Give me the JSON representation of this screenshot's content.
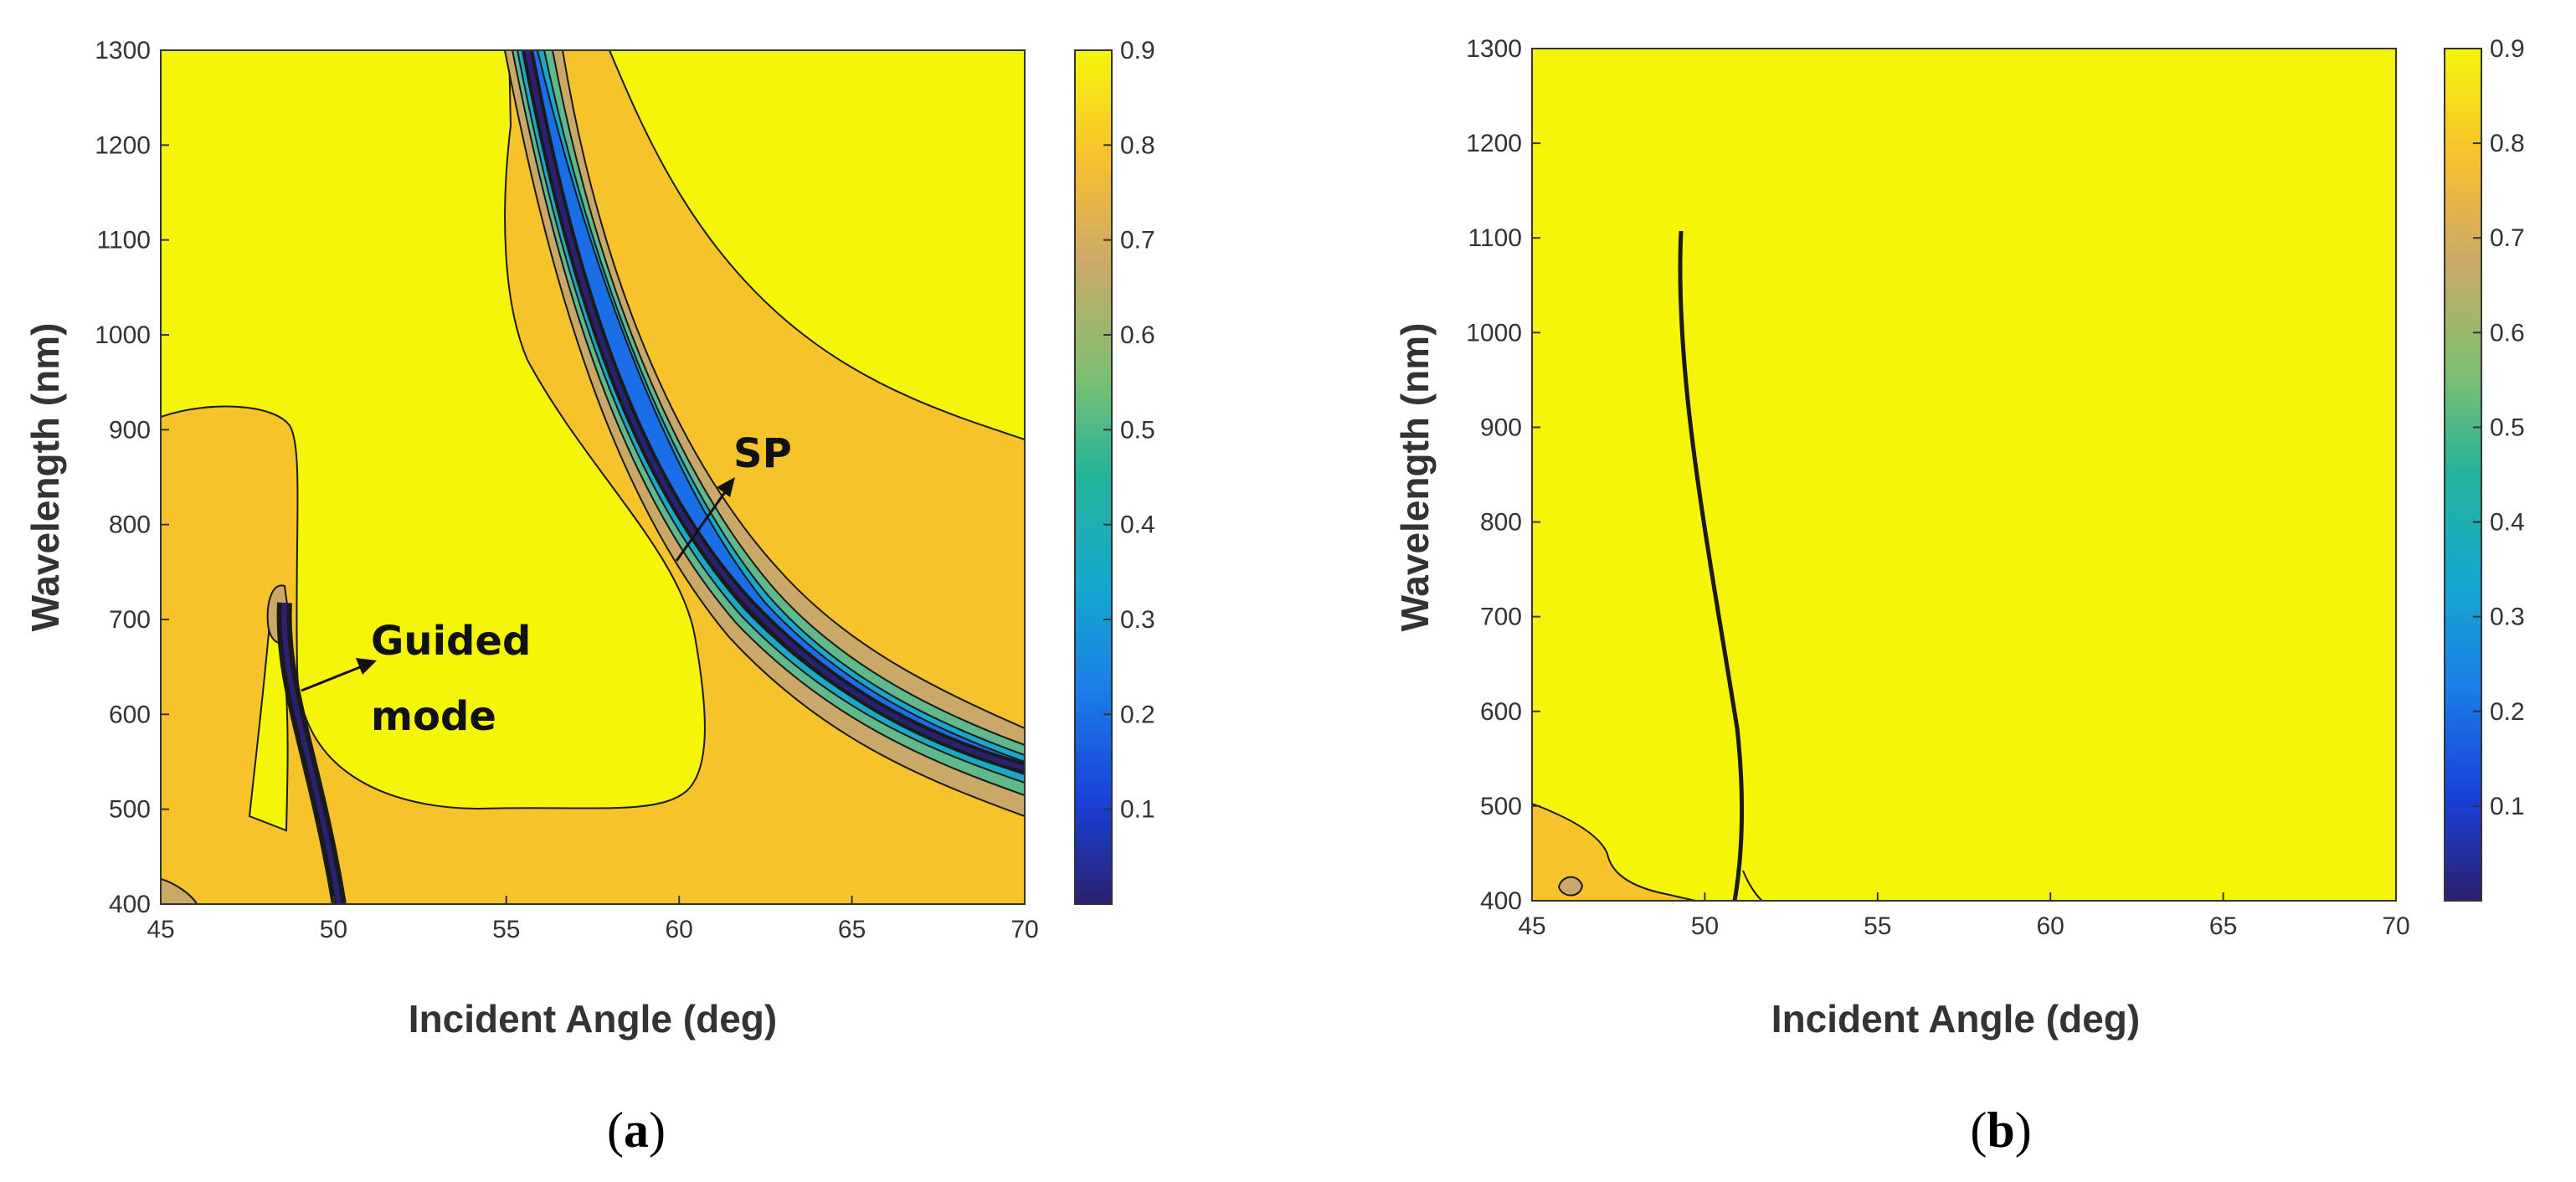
{
  "chart_data": [
    {
      "type": "heatmap",
      "panel_label": "a",
      "xlabel": "Incident Angle (deg)",
      "ylabel": "Wavelength (nm)",
      "xlim": [
        45,
        70
      ],
      "ylim": [
        400,
        1300
      ],
      "xticks": [
        "45",
        "50",
        "55",
        "60",
        "65",
        "70"
      ],
      "yticks": [
        "400",
        "500",
        "600",
        "700",
        "800",
        "900",
        "1000",
        "1100",
        "1200",
        "1300"
      ],
      "colorbar": {
        "range": [
          0,
          0.9
        ],
        "ticks": [
          "0.1",
          "0.2",
          "0.3",
          "0.4",
          "0.5",
          "0.6",
          "0.7",
          "0.8",
          "0.9"
        ]
      },
      "annotations": [
        {
          "lines": [
            "Guided",
            "mode"
          ],
          "points_to": {
            "x": 48.8,
            "y": 600
          }
        },
        {
          "lines": [
            "SP"
          ],
          "points_to": {
            "x": 59.2,
            "y": 780
          }
        }
      ],
      "features": {
        "guided_mode_ridge": [
          [
            50.2,
            400
          ],
          [
            49.7,
            480
          ],
          [
            49.0,
            600
          ],
          [
            48.6,
            720
          ]
        ],
        "sp_ridge": [
          [
            55.6,
            1300
          ],
          [
            56.5,
            1150
          ],
          [
            57.5,
            1000
          ],
          [
            59.0,
            850
          ],
          [
            61.0,
            720
          ],
          [
            64.0,
            610
          ],
          [
            67.0,
            550
          ],
          [
            70.0,
            515
          ]
        ]
      }
    },
    {
      "type": "heatmap",
      "panel_label": "b",
      "xlabel": "Incident Angle (deg)",
      "ylabel": "Wavelength (nm)",
      "xlim": [
        45,
        70
      ],
      "ylim": [
        400,
        1300
      ],
      "xticks": [
        "45",
        "50",
        "55",
        "60",
        "65",
        "70"
      ],
      "yticks": [
        "400",
        "500",
        "600",
        "700",
        "800",
        "900",
        "1000",
        "1100",
        "1200",
        "1300"
      ],
      "colorbar": {
        "range": [
          0,
          0.9
        ],
        "ticks": [
          "0.1",
          "0.2",
          "0.3",
          "0.4",
          "0.5",
          "0.6",
          "0.7",
          "0.8",
          "0.9"
        ]
      },
      "features": {
        "narrow_ridge": [
          [
            51.0,
            400
          ],
          [
            51.1,
            500
          ],
          [
            50.5,
            700
          ],
          [
            49.8,
            900
          ],
          [
            49.4,
            1100
          ]
        ]
      }
    }
  ],
  "colors": {
    "high": "#f5f50a",
    "mid": "#f7c32a",
    "tan": "#caa968",
    "teal_mid": "#22b39a",
    "cyan": "#1aa8c7",
    "blue": "#1a6fe8",
    "navy": "#2a2170",
    "contour": "#1a1a1a",
    "axis": "#333333"
  }
}
